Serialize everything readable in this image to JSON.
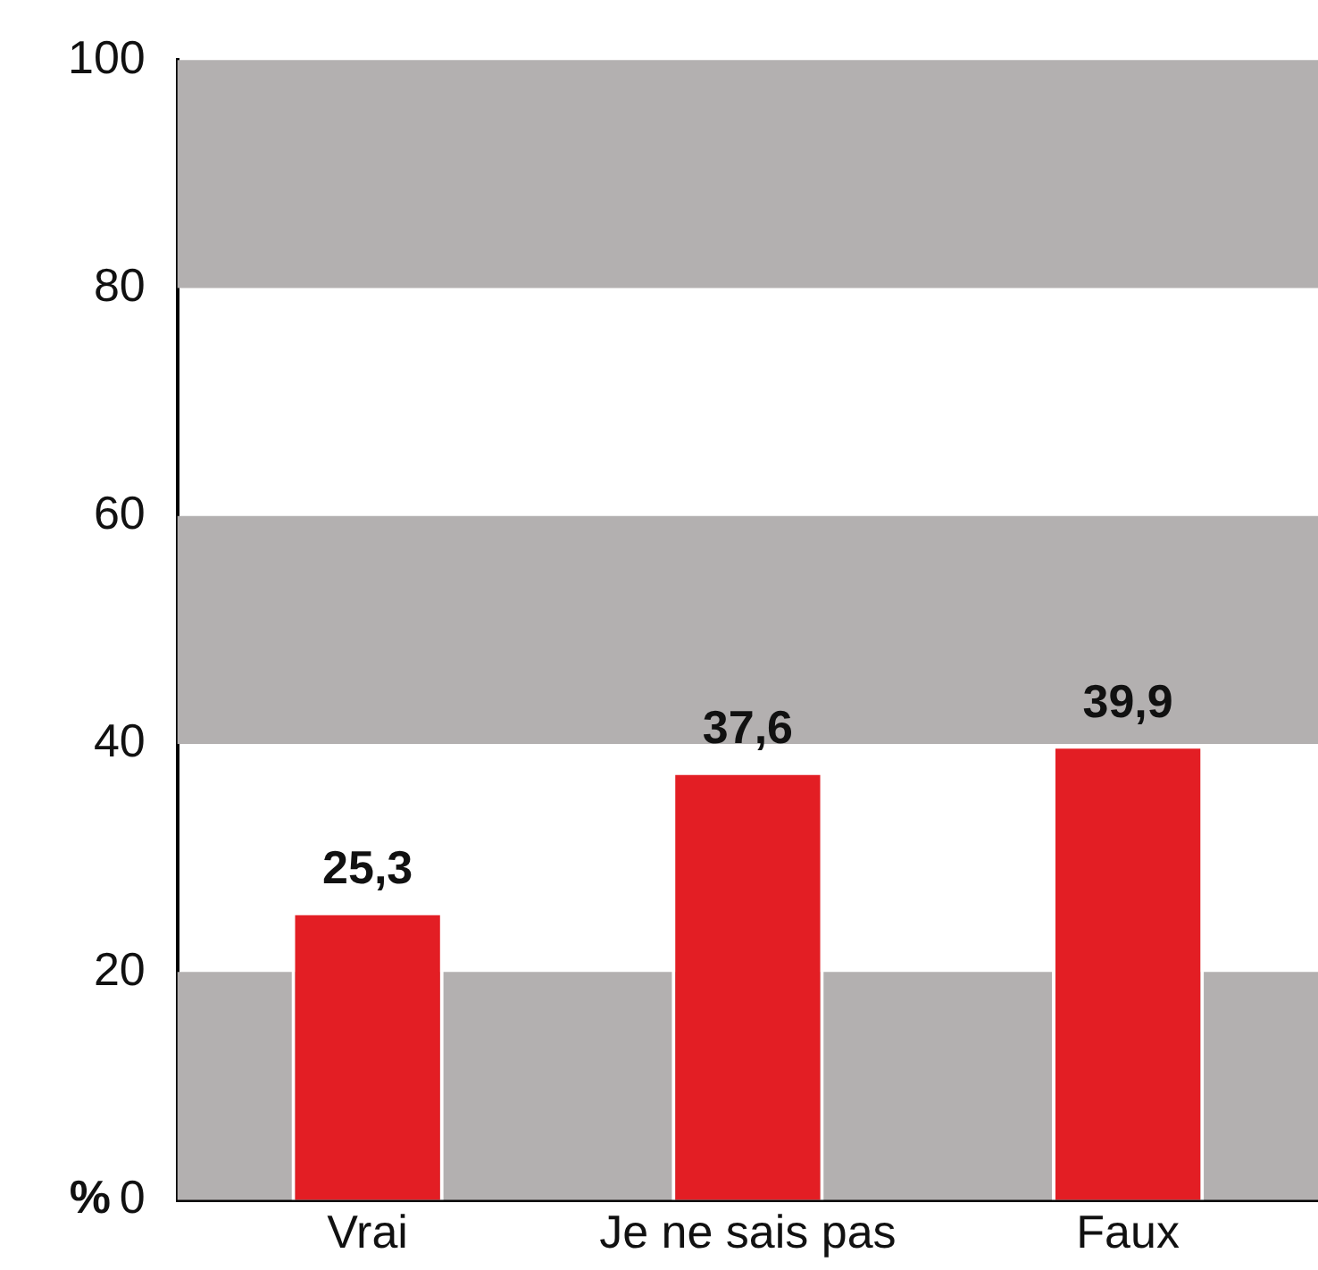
{
  "chart_data": {
    "type": "bar",
    "ylabel": "%",
    "categories": [
      "Vrai",
      "Je ne sais pas",
      "Faux"
    ],
    "values": [
      25.3,
      37.6,
      39.9
    ],
    "value_labels": [
      "25,3",
      "37,6",
      "39,9"
    ],
    "color": "#e31e24",
    "ylim": [
      0,
      100
    ],
    "yticks": [
      0,
      20,
      40,
      60,
      80,
      100
    ],
    "grid": false,
    "legend": false,
    "bands": [
      {
        "axis": "y",
        "from": 0,
        "to": 20,
        "color": "#b3b0b0"
      },
      {
        "axis": "y",
        "from": 40,
        "to": 60,
        "color": "#b3b0b0"
      },
      {
        "axis": "y",
        "from": 80,
        "to": 100,
        "color": "#b3b0b0"
      }
    ]
  }
}
